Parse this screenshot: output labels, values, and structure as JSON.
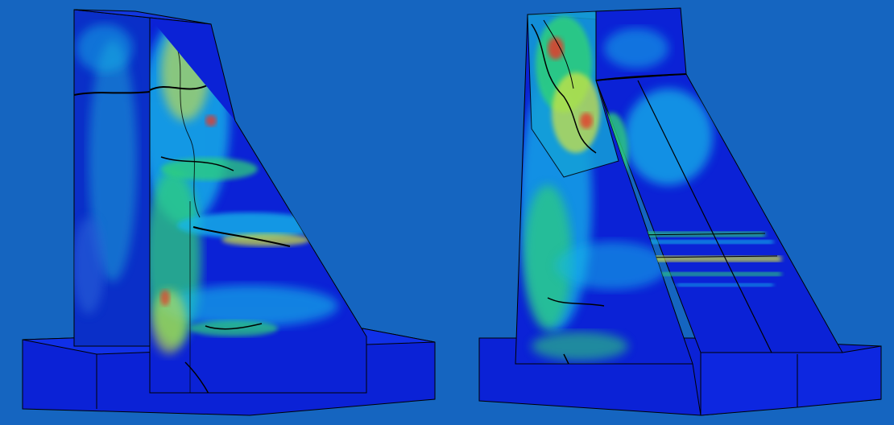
{
  "image": {
    "description_colors": {
      "background": "#1565c0",
      "deep_blue": "#0b22d6",
      "blue_dark": "#0a1fa8",
      "cyan": "#18b6e8",
      "green": "#2fd07a",
      "yellow": "#d8e63c",
      "red": "#e43b2a"
    },
    "views": [
      {
        "name": "dam-view-left"
      },
      {
        "name": "dam-view-right"
      }
    ]
  }
}
